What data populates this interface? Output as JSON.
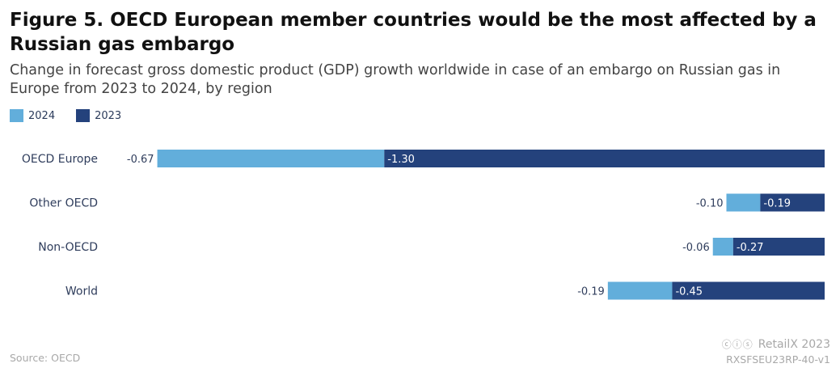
{
  "header": {
    "title": "Figure 5. OECD European member countries would be the most affected by a Russian gas embargo",
    "subtitle": "Change in forecast gross domestic product (GDP) growth worldwide in case of an embargo on Russian gas in Europe from 2023 to 2024, by region"
  },
  "footer": {
    "source": "Source: OECD",
    "brand": "RetailX 2023",
    "code": "RXSFSEU23RP-40-v1",
    "license_icons": "cc-by-nc-icons"
  },
  "chart_data": {
    "type": "bar",
    "orientation": "horizontal",
    "stacked": true,
    "categories": [
      "OECD Europe",
      "Other OECD",
      "Non-OECD",
      "World"
    ],
    "series": [
      {
        "name": "2024",
        "color": "#62aedb",
        "values": [
          -0.67,
          -0.1,
          -0.06,
          -0.19
        ],
        "labels": [
          "-0.67",
          "-0.10",
          "-0.06",
          "-0.19"
        ]
      },
      {
        "name": "2023",
        "color": "#24427c",
        "values": [
          -1.3,
          -0.19,
          -0.27,
          -0.45
        ],
        "labels": [
          "-1.30",
          "-0.19",
          "-0.27",
          "-0.45"
        ]
      }
    ],
    "xlim": [
      -1.97,
      0
    ],
    "grid": false,
    "legend_position": "top-left"
  }
}
